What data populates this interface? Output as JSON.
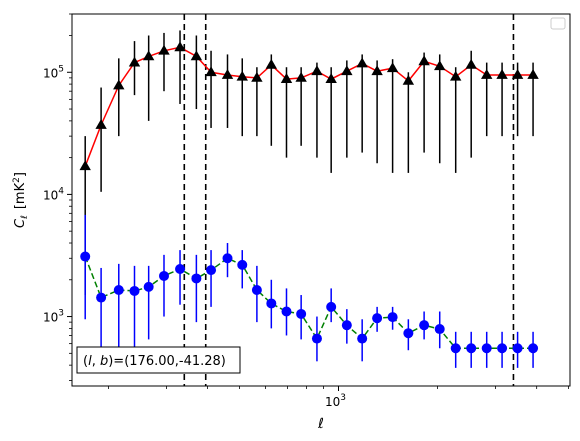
{
  "chart_data": {
    "type": "scatter",
    "title": "",
    "xlabel": "ℓ",
    "ylabel_main": "C",
    "ylabel_sub": "ℓ",
    "ylabel_unit_open": "[mK",
    "ylabel_unit_exp": "2",
    "ylabel_unit_close": "]",
    "xscale": "log",
    "yscale": "log",
    "xlim": [
      155,
      5050
    ],
    "ylim": [
      270,
      300000
    ],
    "grid": false,
    "legend": {
      "placement": "top-right",
      "entries": []
    },
    "x_ticks": [
      {
        "value": 1000,
        "base": "10",
        "exp": "3"
      }
    ],
    "y_ticks": [
      {
        "value": 1000,
        "base": "10",
        "exp": "3"
      },
      {
        "value": 10000,
        "base": "10",
        "exp": "4"
      },
      {
        "value": 100000,
        "base": "10",
        "exp": "5"
      }
    ],
    "vlines": [
      340,
      395,
      3400
    ],
    "annotation": {
      "prefix": "(",
      "l": "l",
      "comma": ", ",
      "b": "b",
      "suffix": ")=(176.00,-41.28)"
    },
    "series": [
      {
        "marker": "triangle",
        "line_style": "solid",
        "line_color": "#ff0000",
        "marker_color": "#000000",
        "errbar_color": "#000000",
        "x": [
          170,
          190,
          215,
          240,
          265,
          295,
          330,
          370,
          410,
          460,
          510,
          565,
          625,
          695,
          770,
          860,
          950,
          1060,
          1180,
          1310,
          1460,
          1630,
          1820,
          2030,
          2270,
          2530,
          2820,
          3140,
          3500,
          3900
        ],
        "y": [
          17000,
          37000,
          78000,
          120000,
          135000,
          150000,
          160000,
          135000,
          100000,
          95000,
          92000,
          90000,
          115000,
          88000,
          90000,
          102000,
          88000,
          102000,
          118000,
          102000,
          108000,
          85000,
          123000,
          112000,
          92000,
          115000,
          95000,
          95000,
          95000,
          95000
        ],
        "err_lo": [
          1500,
          10500,
          30000,
          65000,
          40000,
          70000,
          55000,
          50000,
          35000,
          35000,
          30000,
          30000,
          25000,
          20000,
          25000,
          20000,
          15000,
          20000,
          22000,
          18000,
          15000,
          15000,
          22000,
          18000,
          15000,
          20000,
          30000,
          30000,
          30000,
          30000
        ],
        "err_hi": [
          30000,
          75000,
          130000,
          180000,
          200000,
          210000,
          220000,
          200000,
          150000,
          140000,
          130000,
          110000,
          140000,
          110000,
          110000,
          120000,
          110000,
          125000,
          140000,
          125000,
          128000,
          100000,
          145000,
          140000,
          110000,
          150000,
          120000,
          120000,
          120000,
          120000
        ]
      },
      {
        "marker": "circle",
        "line_style": "dashed",
        "line_color": "#008000",
        "marker_color": "#0000ff",
        "errbar_color": "#0000ff",
        "x": [
          170,
          190,
          215,
          240,
          265,
          295,
          330,
          370,
          410,
          460,
          510,
          565,
          625,
          695,
          770,
          860,
          950,
          1060,
          1180,
          1310,
          1460,
          1630,
          1820,
          2030,
          2270,
          2530,
          2820,
          3140,
          3500,
          3900
        ],
        "y": [
          3100,
          1430,
          1650,
          1620,
          1750,
          2150,
          2450,
          2050,
          2400,
          3000,
          2650,
          1650,
          1280,
          1100,
          1050,
          660,
          1200,
          850,
          660,
          970,
          990,
          730,
          850,
          790,
          550,
          550,
          550,
          550,
          550,
          550
        ],
        "err_lo": [
          950,
          400,
          550,
          550,
          650,
          1000,
          1250,
          900,
          1200,
          2100,
          1700,
          900,
          800,
          700,
          650,
          430,
          900,
          600,
          430,
          750,
          780,
          530,
          650,
          550,
          380,
          380,
          380,
          380,
          380,
          380
        ],
        "err_hi": [
          6800,
          2500,
          2700,
          2600,
          2600,
          3200,
          3500,
          3200,
          3500,
          4000,
          3500,
          2600,
          2000,
          1700,
          1500,
          1000,
          1700,
          1150,
          950,
          1200,
          1200,
          950,
          1100,
          1100,
          750,
          750,
          750,
          750,
          750,
          750
        ]
      }
    ]
  }
}
